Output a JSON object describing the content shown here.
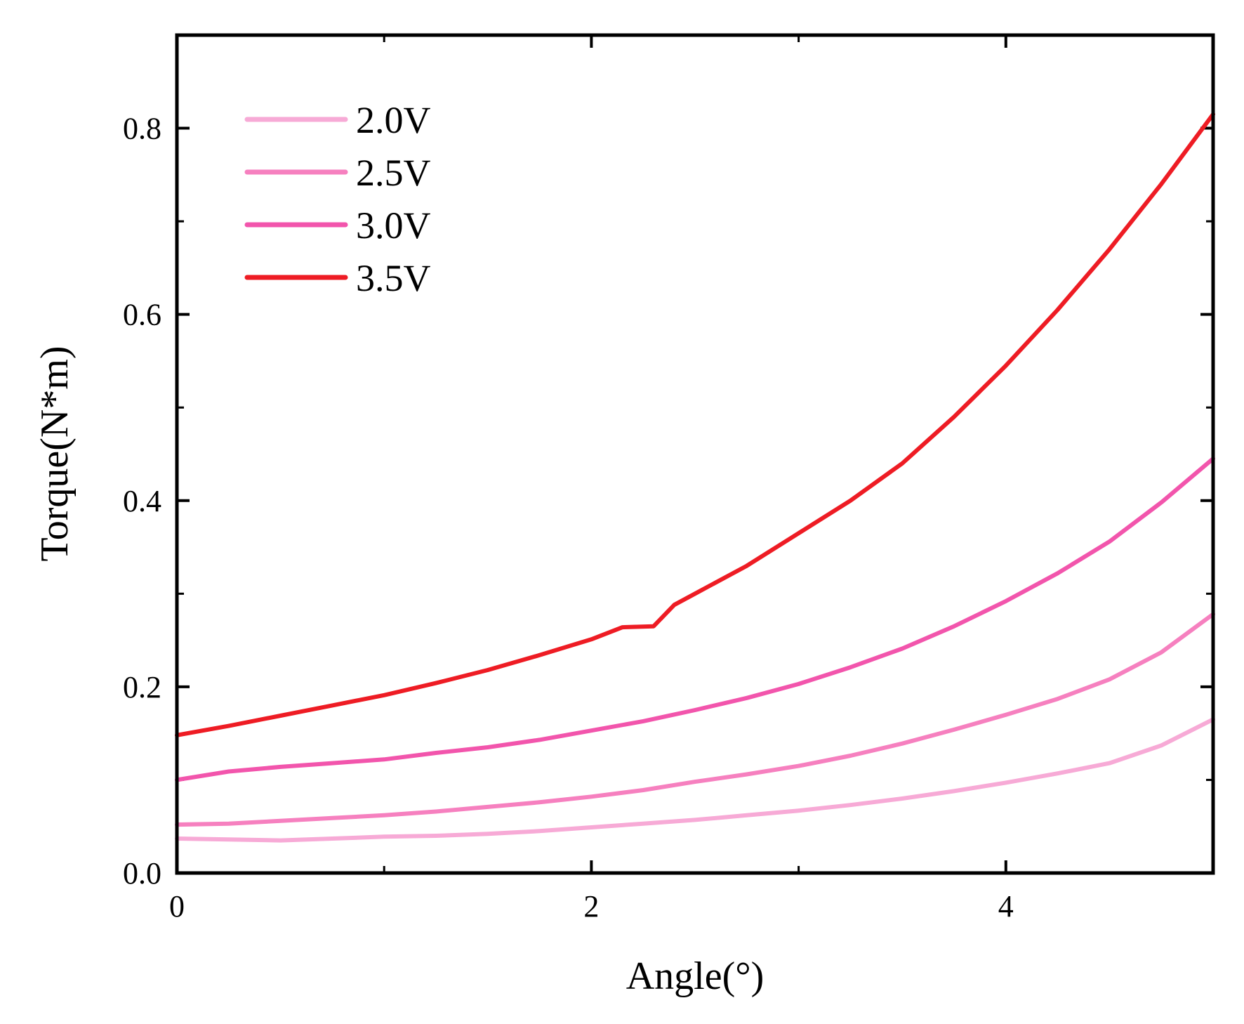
{
  "chart_data": {
    "type": "line",
    "title": "",
    "xlabel": "Angle(°)",
    "ylabel": "Torque(N*m)",
    "xlim": [
      0,
      5
    ],
    "ylim": [
      0,
      0.9
    ],
    "xticks": [
      0,
      2,
      4
    ],
    "xtick_labels": [
      "0",
      "2",
      "4"
    ],
    "yticks": [
      0,
      0.2,
      0.4,
      0.6,
      0.8
    ],
    "ytick_labels": [
      "0.0",
      "0.2",
      "0.4",
      "0.6",
      "0.8"
    ],
    "grid": false,
    "legend_position": "top-left",
    "series": [
      {
        "name": "2.0V",
        "color": "#f7aad6",
        "x": [
          0,
          0.25,
          0.5,
          0.75,
          1.0,
          1.25,
          1.5,
          1.75,
          2.0,
          2.25,
          2.5,
          2.75,
          3.0,
          3.25,
          3.5,
          3.75,
          4.0,
          4.25,
          4.5,
          4.75,
          5.0
        ],
        "y": [
          0.037,
          0.036,
          0.035,
          0.037,
          0.039,
          0.04,
          0.042,
          0.045,
          0.049,
          0.053,
          0.057,
          0.062,
          0.067,
          0.073,
          0.08,
          0.088,
          0.097,
          0.107,
          0.118,
          0.137,
          0.165
        ]
      },
      {
        "name": "2.5V",
        "color": "#f680bf",
        "x": [
          0,
          0.25,
          0.5,
          0.75,
          1.0,
          1.25,
          1.5,
          1.75,
          2.0,
          2.25,
          2.5,
          2.75,
          3.0,
          3.25,
          3.5,
          3.75,
          4.0,
          4.25,
          4.5,
          4.75,
          5.0
        ],
        "y": [
          0.052,
          0.053,
          0.056,
          0.059,
          0.062,
          0.066,
          0.071,
          0.076,
          0.082,
          0.089,
          0.098,
          0.106,
          0.115,
          0.126,
          0.139,
          0.154,
          0.17,
          0.187,
          0.208,
          0.237,
          0.278
        ]
      },
      {
        "name": "3.0V",
        "color": "#f255ac",
        "x": [
          0,
          0.25,
          0.5,
          0.75,
          1.0,
          1.25,
          1.5,
          1.75,
          2.0,
          2.25,
          2.5,
          2.75,
          3.0,
          3.25,
          3.5,
          3.75,
          4.0,
          4.25,
          4.5,
          4.75,
          5.0
        ],
        "y": [
          0.1,
          0.109,
          0.114,
          0.118,
          0.122,
          0.129,
          0.135,
          0.143,
          0.153,
          0.163,
          0.175,
          0.188,
          0.203,
          0.221,
          0.241,
          0.265,
          0.292,
          0.322,
          0.356,
          0.398,
          0.445
        ]
      },
      {
        "name": "3.5V",
        "color": "#ee1c24",
        "x": [
          0,
          0.25,
          0.5,
          0.75,
          1.0,
          1.25,
          1.5,
          1.75,
          2.0,
          2.15,
          2.3,
          2.4,
          2.5,
          2.75,
          3.0,
          3.25,
          3.5,
          3.75,
          4.0,
          4.25,
          4.5,
          4.75,
          5.0
        ],
        "y": [
          0.148,
          0.158,
          0.169,
          0.18,
          0.191,
          0.204,
          0.218,
          0.234,
          0.251,
          0.264,
          0.265,
          0.288,
          0.3,
          0.33,
          0.365,
          0.4,
          0.44,
          0.49,
          0.545,
          0.605,
          0.67,
          0.74,
          0.815
        ]
      }
    ]
  }
}
